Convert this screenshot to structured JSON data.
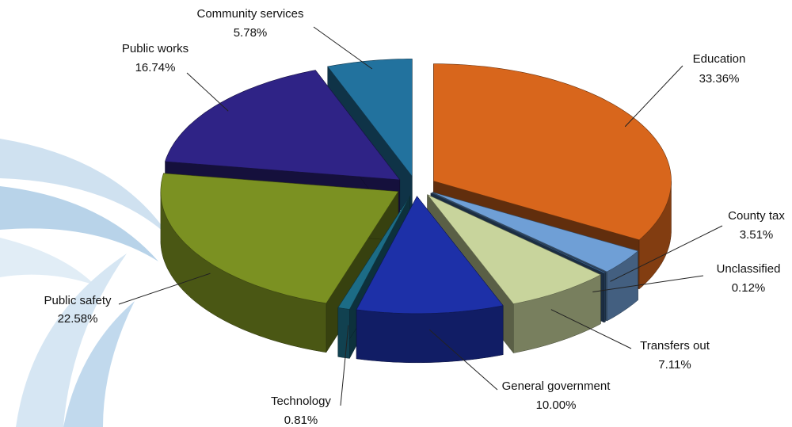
{
  "chart_data": {
    "type": "pie3d",
    "categories": [
      "Education",
      "County tax",
      "Unclassified",
      "Transfers out",
      "General government",
      "Technology",
      "Public safety",
      "Public works",
      "Community services"
    ],
    "values": [
      33.36,
      3.51,
      0.12,
      7.11,
      10.0,
      0.81,
      22.58,
      16.74,
      5.78
    ],
    "value_labels": [
      "33.36%",
      "3.51%",
      "0.12%",
      "7.11%",
      "10.00%",
      "0.81%",
      "22.58%",
      "16.74%",
      "5.78%"
    ],
    "colors": [
      "#d8661c",
      "#6f9fd6",
      "#3d6592",
      "#c8d49c",
      "#1d30a8",
      "#1c6c86",
      "#7b9122",
      "#2f2386",
      "#22729e"
    ]
  }
}
